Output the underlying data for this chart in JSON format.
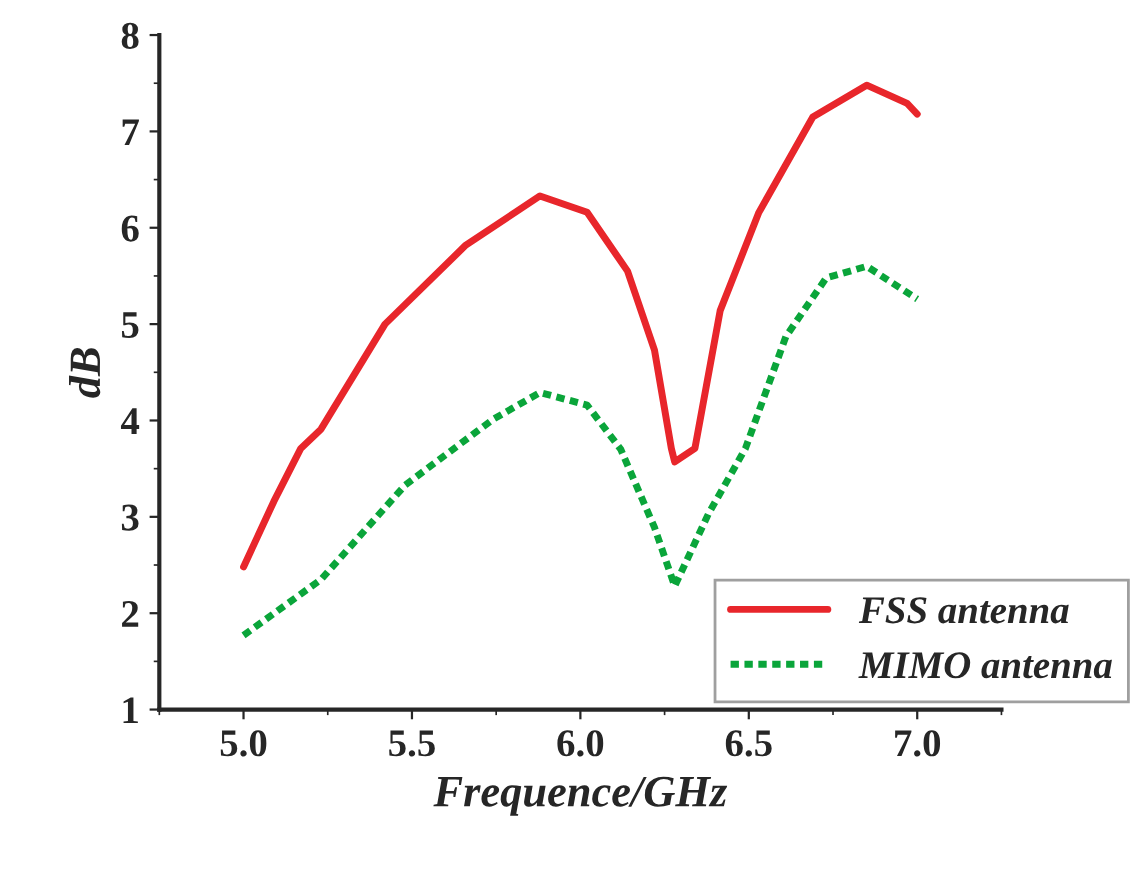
{
  "chart_data": {
    "type": "line",
    "xlabel": "Frequence/GHz",
    "ylabel": "dB",
    "xlim": [
      4.75,
      7.25
    ],
    "xticks": [
      {
        "value": 5.0,
        "label": "5.0"
      },
      {
        "value": 5.5,
        "label": "5.5"
      },
      {
        "value": 6.0,
        "label": "6.0"
      },
      {
        "value": 6.5,
        "label": "6.5"
      },
      {
        "value": 7.0,
        "label": "7.0"
      }
    ],
    "ylim": [
      1,
      8
    ],
    "yticks": [
      1,
      2,
      3,
      4,
      5,
      6,
      7,
      8
    ],
    "grid": false,
    "legend": "bottom right",
    "series": [
      {
        "name": "FSS antenna",
        "color": "#e8262b",
        "line_style": "solid",
        "x": [
          5.0,
          5.09,
          5.17,
          5.23,
          5.42,
          5.66,
          5.88,
          6.02,
          6.14,
          6.22,
          6.27,
          6.28,
          6.34,
          6.415,
          6.53,
          6.69,
          6.85,
          6.97,
          7.0
        ],
        "values": [
          2.48,
          3.16,
          3.71,
          3.91,
          5.0,
          5.82,
          6.33,
          6.16,
          5.55,
          4.73,
          3.71,
          3.57,
          3.71,
          5.14,
          6.16,
          7.15,
          7.48,
          7.29,
          7.18
        ]
      },
      {
        "name": "MIMO antenna",
        "color": "#0aa53a",
        "line_style": "dotted",
        "x": [
          5.0,
          5.23,
          5.48,
          5.74,
          5.88,
          6.02,
          6.12,
          6.22,
          6.28,
          6.38,
          6.49,
          6.61,
          6.73,
          6.85,
          7.0
        ],
        "values": [
          1.77,
          2.35,
          3.33,
          4.01,
          4.29,
          4.16,
          3.7,
          2.89,
          2.28,
          3.03,
          3.71,
          4.87,
          5.48,
          5.6,
          5.26
        ]
      }
    ]
  }
}
